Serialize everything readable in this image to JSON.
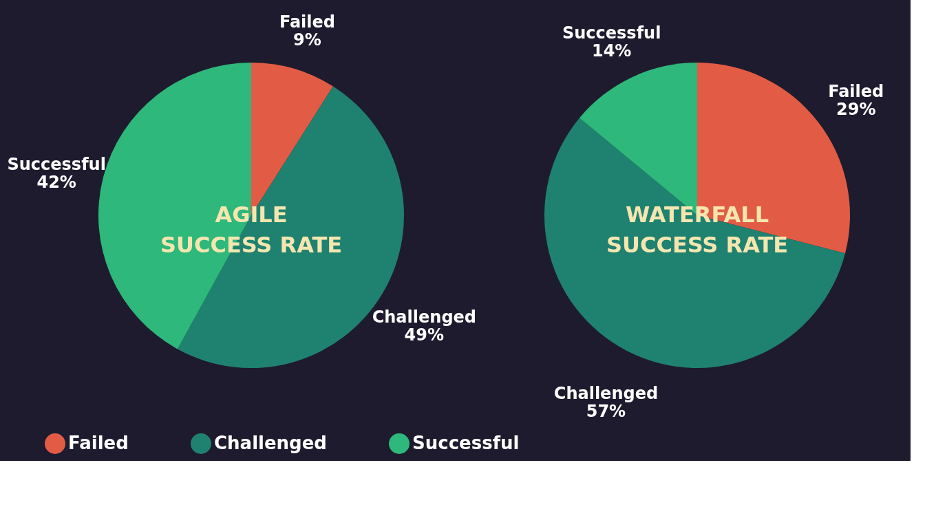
{
  "chart_data": [
    {
      "type": "pie",
      "title": "AGILE\nSUCCESS RATE",
      "categories": [
        "Failed",
        "Challenged",
        "Successful"
      ],
      "values": [
        9,
        49,
        42
      ],
      "value_labels": [
        "9%",
        "49%",
        "42%"
      ],
      "colors": [
        "#e25c45",
        "#1f8270",
        "#2eb87b"
      ],
      "legend": "bottom"
    },
    {
      "type": "pie",
      "title": "WATERFALL\nSUCCESS RATE",
      "categories": [
        "Failed",
        "Challenged",
        "Successful"
      ],
      "values": [
        29,
        57,
        14
      ],
      "value_labels": [
        "29%",
        "57%",
        "14%"
      ],
      "colors": [
        "#e25c45",
        "#1f8270",
        "#2eb87b"
      ]
    }
  ]
}
